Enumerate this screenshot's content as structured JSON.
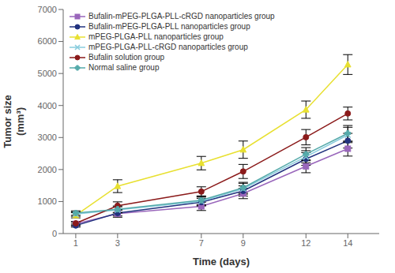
{
  "chart_data": {
    "type": "line",
    "x": [
      1,
      3,
      7,
      9,
      12,
      14
    ],
    "xlabel": "Time (days)",
    "ylabel": "Tumor size\n(mm³)",
    "xlim": [
      0.4,
      15.5
    ],
    "ylim": [
      0,
      7000
    ],
    "xticks": [
      1,
      3,
      7,
      9,
      12,
      14
    ],
    "yticks": [
      0,
      1000,
      2000,
      3000,
      4000,
      5000,
      6000,
      7000
    ],
    "grid": false,
    "legend": "upper left",
    "series": [
      {
        "name": "Bufalin-mPEG-PLGA-PLL-cRGD nanoparticles group",
        "color": "#9966bb",
        "marker": "square",
        "values": [
          300,
          620,
          850,
          1250,
          2100,
          2650
        ],
        "errors": [
          60,
          110,
          130,
          160,
          200,
          230
        ]
      },
      {
        "name": "Bufalin-mPEG-PLGA-PLL nanoparticles group",
        "color": "#22337f",
        "marker": "circle",
        "values": [
          250,
          640,
          980,
          1330,
          2330,
          2900
        ],
        "errors": [
          50,
          90,
          120,
          160,
          200,
          230
        ]
      },
      {
        "name": "mPEG-PLGA-PLL nanoparticles group",
        "color": "#e8e030",
        "marker": "triangle",
        "values": [
          570,
          1480,
          2200,
          2620,
          3870,
          5280
        ],
        "errors": [
          80,
          200,
          210,
          270,
          270,
          310
        ]
      },
      {
        "name": "mPEG-PLGA-PLL-cRGD nanoparticles group",
        "color": "#88ccdd",
        "marker": "x",
        "values": [
          610,
          740,
          1010,
          1400,
          2400,
          3080
        ],
        "errors": [
          70,
          95,
          130,
          170,
          190,
          240
        ]
      },
      {
        "name": "Bufalin solution group",
        "color": "#8b1a1a",
        "marker": "circle",
        "values": [
          320,
          870,
          1310,
          1940,
          3010,
          3750
        ],
        "errors": [
          55,
          120,
          150,
          220,
          240,
          200
        ]
      },
      {
        "name": "Normal saline group",
        "color": "#55aaaa",
        "marker": "plus",
        "values": [
          640,
          760,
          1040,
          1430,
          2480,
          3130
        ],
        "errors": [
          70,
          100,
          135,
          170,
          205,
          245
        ]
      }
    ]
  }
}
